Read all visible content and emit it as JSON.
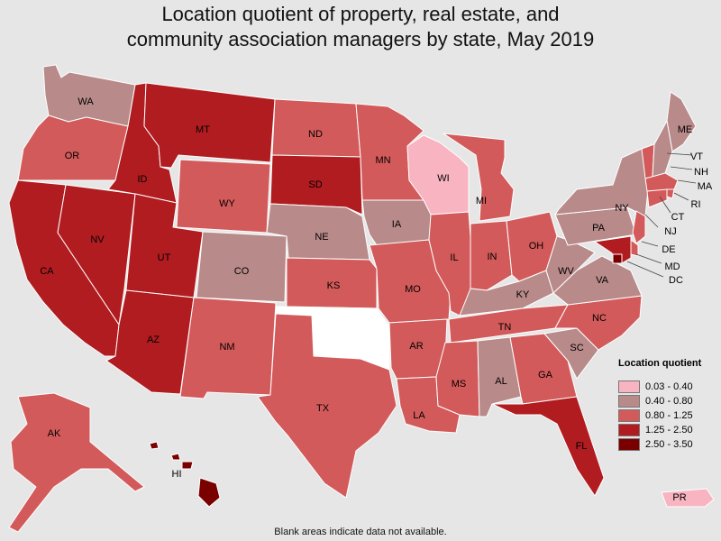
{
  "title": {
    "line1": "Location quotient of property, real estate, and",
    "line2": "community association managers by state, May 2019"
  },
  "legend": {
    "title": "Location quotient",
    "bins": [
      {
        "label": "0.03 - 0.40",
        "color": "#f8b4c1"
      },
      {
        "label": "0.40 - 0.80",
        "color": "#b98a8a"
      },
      {
        "label": "0.80 - 1.25",
        "color": "#d35a5a"
      },
      {
        "label": "1.25 - 2.50",
        "color": "#b01c20"
      },
      {
        "label": "2.50 - 3.50",
        "color": "#7a0000"
      }
    ]
  },
  "no_data_color": "#ffffff",
  "footer": "Blank areas indicate data not available.",
  "states": [
    {
      "abbr": "WA",
      "bin": 1
    },
    {
      "abbr": "OR",
      "bin": 2
    },
    {
      "abbr": "CA",
      "bin": 3
    },
    {
      "abbr": "NV",
      "bin": 3
    },
    {
      "abbr": "ID",
      "bin": 3
    },
    {
      "abbr": "MT",
      "bin": 3
    },
    {
      "abbr": "WY",
      "bin": 2
    },
    {
      "abbr": "UT",
      "bin": 3
    },
    {
      "abbr": "AZ",
      "bin": 3
    },
    {
      "abbr": "CO",
      "bin": 1
    },
    {
      "abbr": "NM",
      "bin": 2
    },
    {
      "abbr": "ND",
      "bin": 2
    },
    {
      "abbr": "SD",
      "bin": 3
    },
    {
      "abbr": "NE",
      "bin": 1
    },
    {
      "abbr": "KS",
      "bin": 2
    },
    {
      "abbr": "OK",
      "bin": null
    },
    {
      "abbr": "TX",
      "bin": 2
    },
    {
      "abbr": "MN",
      "bin": 2
    },
    {
      "abbr": "IA",
      "bin": 1
    },
    {
      "abbr": "MO",
      "bin": 2
    },
    {
      "abbr": "AR",
      "bin": 2
    },
    {
      "abbr": "LA",
      "bin": 2
    },
    {
      "abbr": "WI",
      "bin": 0
    },
    {
      "abbr": "IL",
      "bin": 2
    },
    {
      "abbr": "MI",
      "bin": 2
    },
    {
      "abbr": "IN",
      "bin": 2
    },
    {
      "abbr": "OH",
      "bin": 2
    },
    {
      "abbr": "KY",
      "bin": 1
    },
    {
      "abbr": "TN",
      "bin": 2
    },
    {
      "abbr": "MS",
      "bin": 2
    },
    {
      "abbr": "AL",
      "bin": 1
    },
    {
      "abbr": "GA",
      "bin": 2
    },
    {
      "abbr": "FL",
      "bin": 3
    },
    {
      "abbr": "SC",
      "bin": 1
    },
    {
      "abbr": "NC",
      "bin": 2
    },
    {
      "abbr": "VA",
      "bin": 1
    },
    {
      "abbr": "WV",
      "bin": 1
    },
    {
      "abbr": "PA",
      "bin": 1
    },
    {
      "abbr": "NY",
      "bin": 1
    },
    {
      "abbr": "ME",
      "bin": 1
    },
    {
      "abbr": "VT",
      "bin": 2
    },
    {
      "abbr": "NH",
      "bin": 1
    },
    {
      "abbr": "MA",
      "bin": 2
    },
    {
      "abbr": "RI",
      "bin": 2
    },
    {
      "abbr": "CT",
      "bin": 2
    },
    {
      "abbr": "NJ",
      "bin": 2
    },
    {
      "abbr": "DE",
      "bin": 2
    },
    {
      "abbr": "MD",
      "bin": 3
    },
    {
      "abbr": "DC",
      "bin": 4
    },
    {
      "abbr": "AK",
      "bin": 2
    },
    {
      "abbr": "HI",
      "bin": 4
    },
    {
      "abbr": "PR",
      "bin": 0
    }
  ]
}
